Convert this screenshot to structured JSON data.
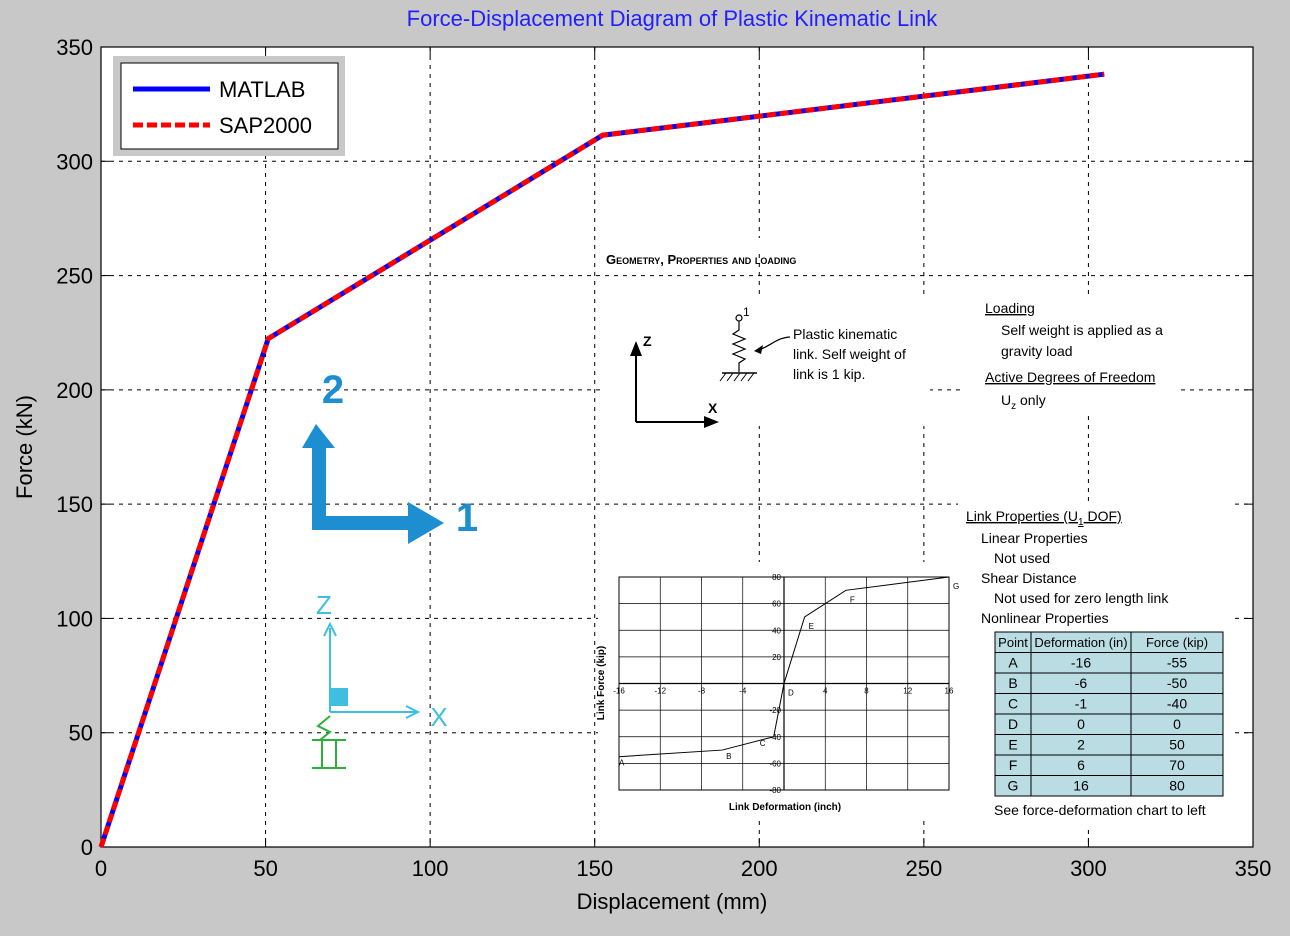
{
  "chart_data": {
    "type": "line",
    "title": "Force-Displacement Diagram of Plastic Kinematic Link",
    "xlabel": "Displacement (mm)",
    "ylabel": "Force (kN)",
    "xlim": [
      0,
      350
    ],
    "ylim": [
      0,
      350
    ],
    "xticks": [
      0,
      50,
      100,
      150,
      200,
      250,
      300,
      350
    ],
    "yticks": [
      0,
      50,
      100,
      150,
      200,
      250,
      300,
      350
    ],
    "grid": true,
    "legend_position": "top-left",
    "series": [
      {
        "name": "MATLAB",
        "color": "#0000ff",
        "style": "solid",
        "x": [
          0,
          50.8,
          152.4,
          304.8
        ],
        "y": [
          0,
          222.4,
          311.4,
          338.1
        ]
      },
      {
        "name": "SAP2000",
        "color": "#ff0000",
        "style": "dashed",
        "x": [
          0,
          50.8,
          152.4,
          304.8
        ],
        "y": [
          0,
          222.4,
          311.4,
          338.1
        ]
      }
    ]
  },
  "overlay": {
    "heading": "Geometry, Properties and loading",
    "link_note": [
      "Plastic kinematic",
      "link.  Self weight of",
      "link is 1 kip."
    ],
    "node_label": "1",
    "axis_z": "Z",
    "axis_x": "X",
    "loading": {
      "title": "Loading",
      "lines": [
        "Self weight is applied as a",
        "gravity load"
      ],
      "dof_title": "Active Degrees of Freedom",
      "dof_value": "U",
      "dof_sub": "z",
      "dof_suffix": " only"
    },
    "link_properties": {
      "title": "Link Properties (U",
      "title_sub": "1",
      "title_suffix": " DOF)",
      "lines": [
        "Linear Properties",
        "Not used",
        "Shear Distance",
        "Not used for zero length link",
        "Nonlinear Properties"
      ],
      "table_headers": [
        "Point",
        "Deformation (in)",
        "Force (kip)"
      ],
      "table_rows": [
        [
          "A",
          "-16",
          "-55"
        ],
        [
          "B",
          "-6",
          "-50"
        ],
        [
          "C",
          "-1",
          "-40"
        ],
        [
          "D",
          "0",
          "0"
        ],
        [
          "E",
          "2",
          "50"
        ],
        [
          "F",
          "6",
          "70"
        ],
        [
          "G",
          "16",
          "80"
        ]
      ],
      "footer": "See force-deformation chart to left"
    },
    "mini_chart": {
      "type": "line",
      "xlabel": "Link Deformation (inch)",
      "ylabel": "Link Force (kip)",
      "xlim": [
        -16,
        16
      ],
      "ylim": [
        -80,
        80
      ],
      "xticks": [
        -16,
        -12,
        -8,
        -4,
        0,
        4,
        8,
        12,
        16
      ],
      "yticks": [
        -80,
        -60,
        -40,
        -20,
        20,
        40,
        60,
        80
      ],
      "points": [
        {
          "label": "A",
          "x": -16,
          "y": -55
        },
        {
          "label": "B",
          "x": -6,
          "y": -50
        },
        {
          "label": "C",
          "x": -1,
          "y": -40
        },
        {
          "label": "D",
          "x": 0,
          "y": 0
        },
        {
          "label": "E",
          "x": 2,
          "y": 50
        },
        {
          "label": "F",
          "x": 6,
          "y": 70
        },
        {
          "label": "G",
          "x": 16,
          "y": 80
        }
      ]
    },
    "triad_large": {
      "axis1": "1",
      "axis2": "2"
    },
    "triad_small": {
      "axis_z": "Z",
      "axis_x": "X"
    }
  }
}
